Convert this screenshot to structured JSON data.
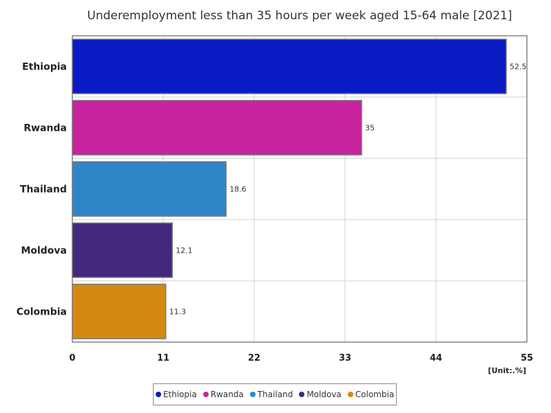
{
  "chart_data": {
    "type": "bar",
    "orientation": "horizontal",
    "title": "Underemployment less than 35 hours per week aged 15-64 male [2021]",
    "categories": [
      "Ethiopia",
      "Rwanda",
      "Thailand",
      "Moldova",
      "Colombia"
    ],
    "values": [
      52.5,
      35,
      18.6,
      12.1,
      11.3
    ],
    "value_labels": [
      "52.5",
      "35",
      "18.6",
      "12.1",
      "11.3"
    ],
    "colors": [
      "#0a1bc4",
      "#c8239e",
      "#2e86c8",
      "#44277e",
      "#d58912"
    ],
    "xlim": [
      0,
      55
    ],
    "xticks": [
      0,
      11,
      22,
      33,
      44,
      55
    ],
    "xtick_labels": [
      "0",
      "11",
      "22",
      "33",
      "44",
      "55"
    ],
    "unit": "[Unit:.%]",
    "grid": true,
    "legend_position": "bottom"
  }
}
